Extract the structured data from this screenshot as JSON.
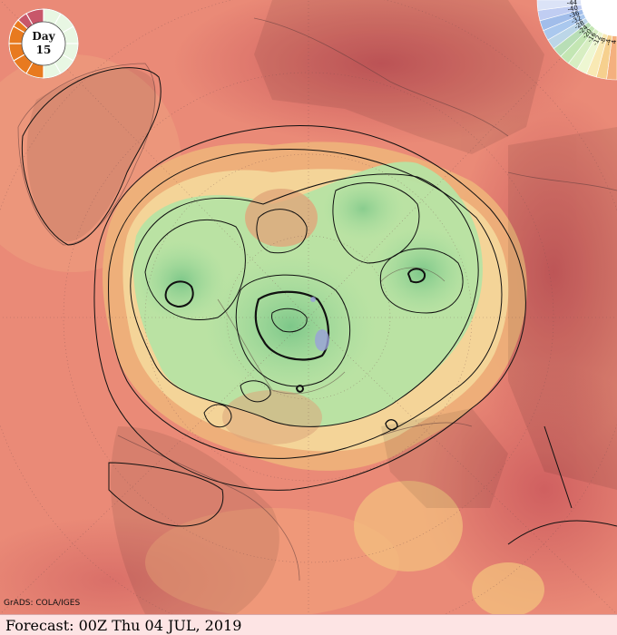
{
  "day_badge": {
    "label": "Day",
    "number": "15"
  },
  "legend": {
    "values": [
      "4",
      "-4",
      "-8",
      "-12",
      "-16",
      "-20",
      "-24",
      "-28",
      "-32",
      "-36",
      "-40",
      "-44"
    ]
  },
  "credit": "GrADS: COLA/IGES",
  "footer": {
    "text": "Forecast: 00Z Thu 04 JUL, 2019"
  },
  "colors": {
    "warm": "#e97c6e",
    "hot": "#d0625c",
    "mid": "#eebd7c",
    "light": "#f6e5a6",
    "cool": "#a7dea0",
    "cold": "#79c68a",
    "ocean_tint": "#efa188"
  }
}
